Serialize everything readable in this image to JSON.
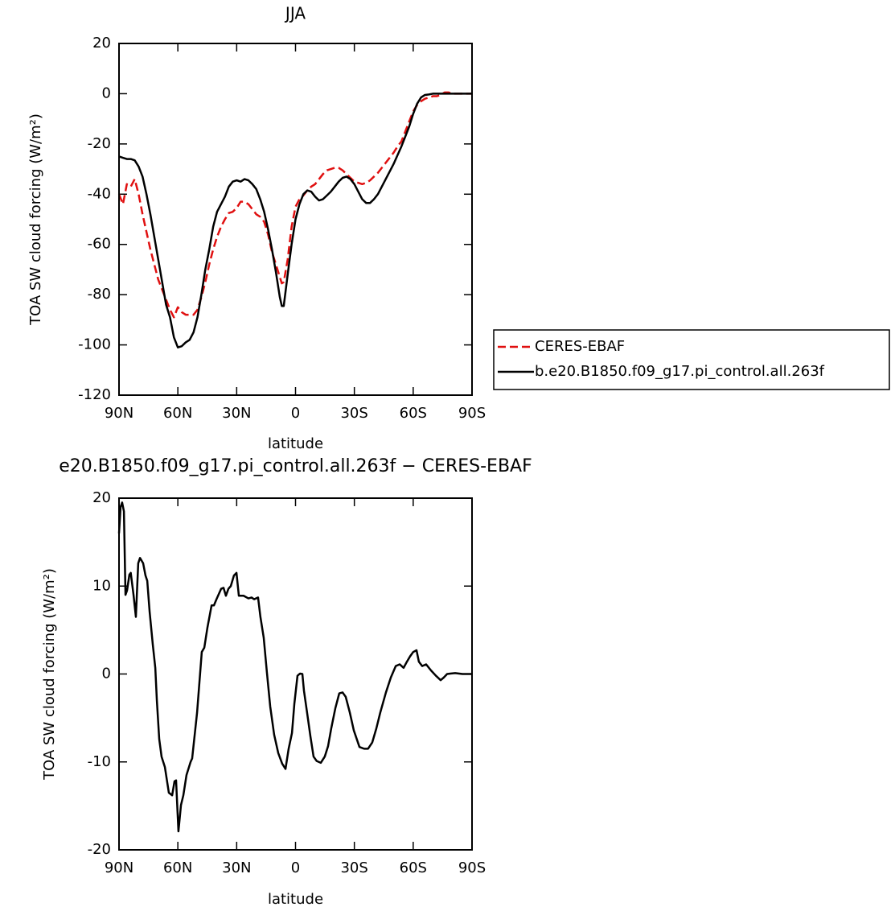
{
  "chart_data": [
    {
      "type": "line",
      "title": "JJA",
      "x_label": "latitude",
      "y_label": "TOA SW cloud forcing (W/m²)",
      "xlim": [
        90,
        -90
      ],
      "xticks": [
        {
          "value": 90,
          "label": "90N"
        },
        {
          "value": 60,
          "label": "60N"
        },
        {
          "value": 30,
          "label": "30N"
        },
        0,
        {
          "value": -30,
          "label": "30S"
        },
        {
          "value": -60,
          "label": "60S"
        },
        {
          "value": -90,
          "label": "90S"
        }
      ],
      "ylim": [
        -120,
        20
      ],
      "yticks": [
        -120,
        -100,
        -80,
        -60,
        -40,
        -20,
        0,
        20
      ],
      "legend": "right",
      "x": [
        90,
        88,
        86,
        84,
        82,
        80,
        78,
        76,
        74,
        72,
        70,
        68,
        66,
        64,
        62,
        60,
        58,
        56,
        54,
        52,
        50,
        48,
        46,
        44,
        42,
        40,
        38,
        36,
        34,
        32,
        30,
        28,
        26,
        24,
        22,
        20,
        18,
        16,
        14,
        12,
        10,
        8,
        7,
        6,
        4,
        2,
        0,
        -2,
        -4,
        -6,
        -8,
        -10,
        -12,
        -14,
        -16,
        -18,
        -20,
        -22,
        -24,
        -26,
        -28,
        -30,
        -32,
        -34,
        -36,
        -38,
        -40,
        -42,
        -44,
        -46,
        -48,
        -50,
        -52,
        -54,
        -56,
        -58,
        -60,
        -62,
        -64,
        -66,
        -68,
        -70,
        -72,
        -74,
        -76,
        -78,
        -80,
        -85,
        -90
      ],
      "series": [
        {
          "name": "CERES-EBAF",
          "color": "#e01010",
          "line_style": "dashed",
          "values": [
            -40,
            -44,
            -36,
            -37,
            -34,
            -40,
            -48,
            -55,
            -62,
            -68,
            -74,
            -78,
            -82,
            -86,
            -89,
            -85,
            -87,
            -88,
            -88,
            -88,
            -86,
            -81,
            -75,
            -68,
            -62,
            -57,
            -53,
            -50,
            -47.5,
            -47,
            -45.5,
            -43,
            -43,
            -44,
            -46,
            -48,
            -49,
            -51,
            -56,
            -63,
            -68,
            -73,
            -75.5,
            -75,
            -66,
            -53,
            -45,
            -42,
            -40.5,
            -38.5,
            -37,
            -36,
            -34,
            -32,
            -30.5,
            -30,
            -29.5,
            -29.5,
            -30.5,
            -32,
            -33.5,
            -35,
            -35.5,
            -36,
            -35.5,
            -34.5,
            -33,
            -31.5,
            -29.5,
            -27.5,
            -25.5,
            -23.5,
            -21,
            -19,
            -15,
            -11,
            -7,
            -4.5,
            -3,
            -2,
            -1.5,
            -1,
            -1,
            -0.5,
            0.5,
            0.5,
            0,
            0,
            0
          ]
        },
        {
          "name": "b.e20.B1850.f09_g17.pi_control.all.263f",
          "color": "#000000",
          "line_style": "solid",
          "values": [
            -25,
            -25.5,
            -26,
            -26,
            -26.5,
            -29,
            -33,
            -40,
            -48,
            -57,
            -66,
            -75,
            -84,
            -89,
            -97,
            -101,
            -100.5,
            -99,
            -98,
            -95,
            -89,
            -80,
            -70,
            -62,
            -53,
            -47,
            -44,
            -41,
            -37,
            -35,
            -34.5,
            -35,
            -34,
            -34.5,
            -36,
            -38,
            -42,
            -47,
            -54,
            -62,
            -71,
            -81,
            -84.5,
            -84.5,
            -72,
            -60,
            -50,
            -44,
            -40,
            -38.5,
            -39,
            -41,
            -42.5,
            -42,
            -40.5,
            -39,
            -37,
            -35,
            -33.5,
            -33,
            -34,
            -36,
            -39,
            -42,
            -43.5,
            -43.5,
            -42,
            -40,
            -37,
            -34,
            -31,
            -28,
            -24.5,
            -21,
            -17,
            -13,
            -8,
            -4,
            -1.5,
            -0.5,
            -0.3,
            0,
            0,
            0,
            0,
            0,
            0,
            0,
            0
          ]
        }
      ]
    },
    {
      "type": "line",
      "title": "e20.B1850.f09_g17.pi_control.all.263f − CERES-EBAF",
      "x_label": "latitude",
      "y_label": "TOA SW cloud forcing (W/m²)",
      "xlim": [
        90,
        -90
      ],
      "xticks": [
        {
          "value": 90,
          "label": "90N"
        },
        {
          "value": 60,
          "label": "60N"
        },
        {
          "value": 30,
          "label": "30N"
        },
        0,
        {
          "value": -30,
          "label": "30S"
        },
        {
          "value": -60,
          "label": "60S"
        },
        {
          "value": -90,
          "label": "90S"
        }
      ],
      "ylim": [
        -20,
        20
      ],
      "yticks": [
        -20,
        -10,
        0,
        10,
        20
      ],
      "x": [
        90,
        89.2,
        88.4,
        87.5,
        86.7,
        85.9,
        84.7,
        84,
        82.6,
        81.4,
        80.2,
        79.3,
        77.7,
        76.5,
        75.6,
        74.4,
        72.8,
        71.5,
        70.7,
        69.5,
        68.3,
        66.6,
        64.6,
        62.9,
        61.7,
        60.9,
        59.7,
        58.4,
        57.2,
        55.6,
        53.5,
        52.7,
        50.2,
        47.8,
        46.5,
        44.9,
        42.8,
        41.6,
        40.3,
        37.9,
        36.7,
        35.5,
        34.2,
        33,
        31.4,
        30.1,
        28.9,
        26.5,
        24,
        22.4,
        21.1,
        19.1,
        17.9,
        16.2,
        14.6,
        12.9,
        10.9,
        8.8,
        6.8,
        5.1,
        3.5,
        1.8,
        0.6,
        -1,
        -2.3,
        -3.5,
        -4.3,
        -5.9,
        -7.6,
        -9.2,
        -10.8,
        -12.9,
        -14.9,
        -16.6,
        -18.2,
        -20.3,
        -22.3,
        -24,
        -25.6,
        -27.7,
        -29.7,
        -32.6,
        -35,
        -37,
        -39.1,
        -41.2,
        -43.2,
        -46.1,
        -48.6,
        -51.1,
        -53.1,
        -55.1,
        -56.8,
        -58.4,
        -60,
        -61.7,
        -62.9,
        -64.6,
        -66.6,
        -69.1,
        -71.6,
        -74,
        -75.6,
        -77.3,
        -78.9,
        -81.4,
        -85.1,
        -90
      ],
      "series": [
        {
          "color": "#000000",
          "line_style": "solid",
          "values": [
            16,
            19,
            19.5,
            18.5,
            9,
            9.5,
            11.3,
            11.5,
            9,
            6.5,
            12.6,
            13.2,
            12.6,
            11.2,
            10.6,
            7.1,
            3.4,
            0.7,
            -3,
            -7.4,
            -9.4,
            -10.6,
            -13.5,
            -13.8,
            -12.2,
            -12.1,
            -17.9,
            -14.9,
            -13.8,
            -11.5,
            -10,
            -9.6,
            -4.4,
            2.5,
            3,
            5.3,
            7.8,
            7.8,
            8.5,
            9.7,
            9.8,
            8.9,
            9.7,
            10,
            11.2,
            11.5,
            8.9,
            8.9,
            8.6,
            8.7,
            8.5,
            8.7,
            6.5,
            4.1,
            0.2,
            -3.7,
            -6.9,
            -9,
            -10.2,
            -10.8,
            -8.5,
            -6.7,
            -3.4,
            -0.2,
            0.05,
            0,
            -1.9,
            -4.4,
            -7.1,
            -9.4,
            -9.9,
            -10.1,
            -9.4,
            -8.2,
            -6.2,
            -3.9,
            -2.2,
            -2.1,
            -2.6,
            -4.4,
            -6.4,
            -8.3,
            -8.5,
            -8.5,
            -7.8,
            -6.2,
            -4.4,
            -2.1,
            -0.4,
            0.9,
            1.1,
            0.7,
            1.4,
            2,
            2.5,
            2.7,
            1.4,
            0.9,
            1.1,
            0.4,
            -0.2,
            -0.7,
            -0.4,
            0,
            0.05,
            0.1,
            0,
            0
          ]
        }
      ]
    }
  ]
}
